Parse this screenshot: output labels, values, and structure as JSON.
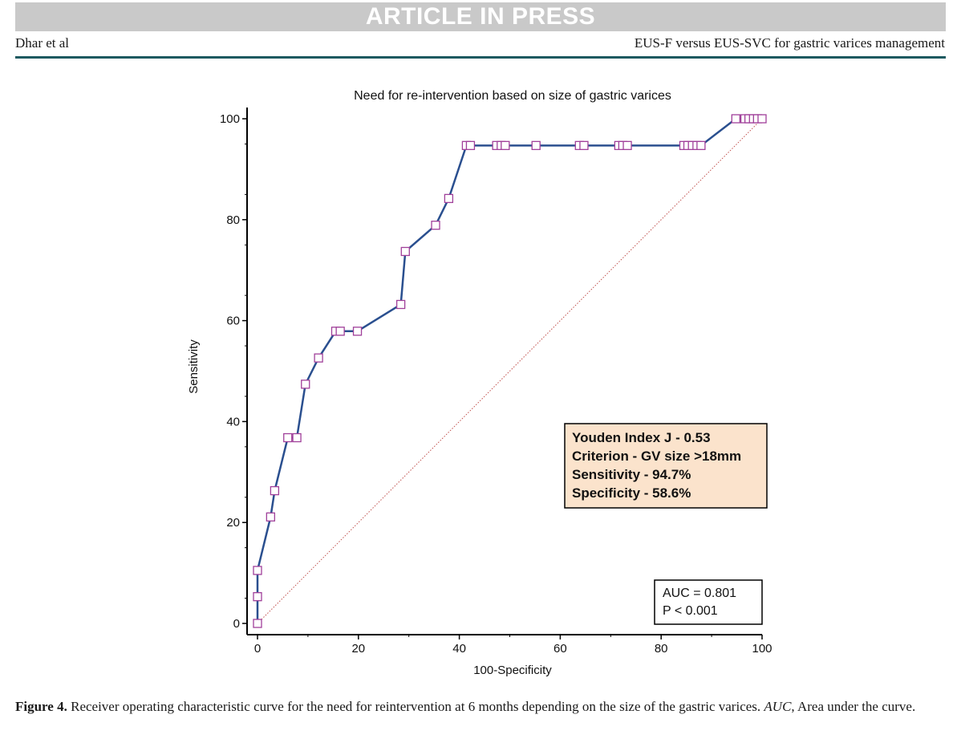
{
  "header": {
    "banner": "ARTICLE IN PRESS",
    "authors": "Dhar et al",
    "running_title": "EUS-F versus EUS-SVC for gastric varices management"
  },
  "caption": {
    "label": "Figure 4.",
    "text": " Receiver operating characteristic curve for the need for reintervention at 6 months depending on the size of the gastric varices. ",
    "abbrev": "AUC",
    "abbrev_def": ", Area under the curve."
  },
  "chart_data": {
    "type": "line",
    "title": "Need for re-intervention based on size of gastric varices",
    "xlabel": "100-Specificity",
    "ylabel": "Sensitivity",
    "xlim": [
      0,
      100
    ],
    "ylim": [
      0,
      100
    ],
    "xticks": [
      "0",
      "20",
      "40",
      "60",
      "80",
      "100"
    ],
    "yticks": [
      "0",
      "20",
      "40",
      "60",
      "80",
      "100"
    ],
    "series": [
      {
        "color": "#2a4f8f",
        "marker_color": "#a0409a",
        "x": [
          0,
          0,
          0,
          2.6,
          3.4,
          6.0,
          7.8,
          9.5,
          12.1,
          15.5,
          16.4,
          19.8,
          28.4,
          29.3,
          35.3,
          37.9,
          41.4,
          42.2,
          47.4,
          48.3,
          49.1,
          55.2,
          63.8,
          64.7,
          71.6,
          72.4,
          73.3,
          84.5,
          85.3,
          86.2,
          87.1,
          87.9,
          94.8,
          96.6,
          97.4,
          98.3,
          99.1,
          100
        ],
        "y": [
          0,
          5.3,
          10.5,
          21.1,
          26.3,
          36.8,
          36.8,
          47.4,
          52.6,
          57.9,
          57.9,
          57.9,
          63.2,
          73.7,
          78.9,
          84.2,
          94.7,
          94.7,
          94.7,
          94.7,
          94.7,
          94.7,
          94.7,
          94.7,
          94.7,
          94.7,
          94.7,
          94.7,
          94.7,
          94.7,
          94.7,
          94.7,
          100,
          100,
          100,
          100,
          100,
          100
        ]
      }
    ],
    "reference_line": {
      "from": [
        0,
        0
      ],
      "to": [
        100,
        100
      ],
      "color": "#c0504d",
      "style": "dotted"
    },
    "annotation_box": {
      "lines": [
        "Youden Index J - 0.53",
        "Criterion - GV size >18mm",
        "Sensitivity - 94.7%",
        "Specificity - 58.6%"
      ],
      "background": "#fbe3cc"
    },
    "auc_box": {
      "lines": [
        "AUC = 0.801",
        "P < 0.001"
      ]
    },
    "grid": false
  }
}
